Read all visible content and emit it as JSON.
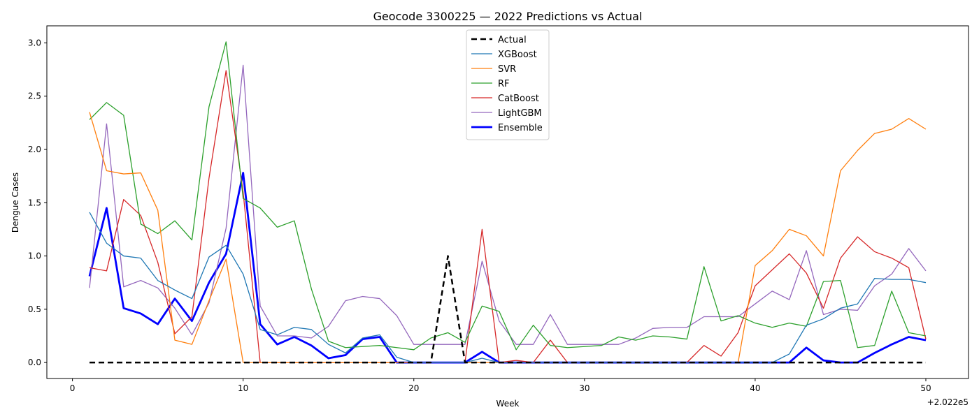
{
  "chart_data": {
    "type": "line",
    "title": "Geocode 3300225 — 2022 Predictions vs Actual",
    "xlabel": "Week",
    "ylabel": "Dengue Cases",
    "x_offset_label": "+2.022e5",
    "xlim": [
      -1.5,
      52.5
    ],
    "ylim": [
      -0.15,
      3.16
    ],
    "x_ticks": [
      0,
      10,
      20,
      30,
      40,
      50
    ],
    "x_tick_labels": [
      "0",
      "10",
      "20",
      "30",
      "40",
      "50"
    ],
    "y_ticks": [
      0,
      0.5,
      1,
      1.5,
      2,
      2.5,
      3
    ],
    "y_tick_labels": [
      "0.0",
      "0.5",
      "1.0",
      "1.5",
      "2.0",
      "2.5",
      "3.0"
    ],
    "grid": false,
    "legend_position": "top-center",
    "x": [
      1,
      2,
      3,
      4,
      5,
      6,
      7,
      8,
      9,
      10,
      11,
      12,
      13,
      14,
      15,
      16,
      17,
      18,
      19,
      20,
      21,
      22,
      23,
      24,
      25,
      26,
      27,
      28,
      29,
      30,
      31,
      32,
      33,
      34,
      35,
      36,
      37,
      38,
      39,
      40,
      41,
      42,
      43,
      44,
      45,
      46,
      47,
      48,
      49,
      50
    ],
    "series": [
      {
        "name": "Actual",
        "color": "#000000",
        "width": 2.5,
        "dash": "8,5",
        "values": [
          0,
          0,
          0,
          0,
          0,
          0,
          0,
          0,
          0,
          0,
          0,
          0,
          0,
          0,
          0,
          0,
          0,
          0,
          0,
          0,
          0,
          1,
          0,
          0,
          0,
          0,
          0,
          0,
          0,
          0,
          0,
          0,
          0,
          0,
          0,
          0,
          0,
          0,
          0,
          0,
          0,
          0,
          0,
          0,
          0,
          0,
          0,
          0,
          0,
          0
        ]
      },
      {
        "name": "XGBoost",
        "color": "#1f77b4",
        "width": 1.3,
        "dash": "",
        "values": [
          1.41,
          1.12,
          1.0,
          0.98,
          0.77,
          0.68,
          0.6,
          0.99,
          1.1,
          0.83,
          0.31,
          0.26,
          0.33,
          0.31,
          0.17,
          0.09,
          0.23,
          0.26,
          0.05,
          0,
          0,
          0,
          0,
          0.04,
          0,
          0,
          0,
          0,
          0,
          0,
          0,
          0,
          0,
          0,
          0,
          0,
          0,
          0,
          0,
          0,
          0,
          0.08,
          0.35,
          0.41,
          0.51,
          0.55,
          0.79,
          0.78,
          0.78,
          0.75
        ]
      },
      {
        "name": "SVR",
        "color": "#ff7f0e",
        "width": 1.3,
        "dash": "",
        "values": [
          2.35,
          1.8,
          1.77,
          1.78,
          1.43,
          0.21,
          0.17,
          0.58,
          0.97,
          0,
          0,
          0,
          0,
          0,
          0,
          0,
          0,
          0,
          0,
          0,
          0,
          0,
          0,
          0,
          0,
          0,
          0,
          0,
          0,
          0,
          0,
          0,
          0,
          0,
          0,
          0,
          0,
          0,
          0,
          0.91,
          1.05,
          1.25,
          1.19,
          1.0,
          1.8,
          1.99,
          2.15,
          2.19,
          2.29,
          2.19
        ]
      },
      {
        "name": "RF",
        "color": "#2ca02c",
        "width": 1.3,
        "dash": "",
        "values": [
          2.28,
          2.44,
          2.32,
          1.3,
          1.21,
          1.33,
          1.15,
          2.4,
          3.01,
          1.54,
          1.45,
          1.27,
          1.33,
          0.69,
          0.2,
          0.14,
          0.15,
          0.16,
          0.14,
          0.12,
          0.23,
          0.28,
          0.19,
          0.53,
          0.48,
          0.12,
          0.35,
          0.16,
          0.14,
          0.15,
          0.16,
          0.24,
          0.21,
          0.25,
          0.24,
          0.22,
          0.9,
          0.39,
          0.44,
          0.37,
          0.33,
          0.37,
          0.34,
          0.76,
          0.77,
          0.14,
          0.16,
          0.67,
          0.28,
          0.25
        ]
      },
      {
        "name": "CatBoost",
        "color": "#d62728",
        "width": 1.3,
        "dash": "",
        "values": [
          0.89,
          0.86,
          1.53,
          1.38,
          0.94,
          0.27,
          0.43,
          1.73,
          2.74,
          1.6,
          0,
          0,
          0,
          0,
          0,
          0,
          0,
          0,
          0,
          0,
          0,
          0,
          0,
          1.25,
          0,
          0.02,
          0,
          0.21,
          0,
          0,
          0,
          0,
          0,
          0,
          0,
          0,
          0.16,
          0.06,
          0.28,
          0.72,
          0.87,
          1.02,
          0.84,
          0.51,
          0.98,
          1.18,
          1.04,
          0.98,
          0.89,
          0.22
        ]
      },
      {
        "name": "LightGBM",
        "color": "#9467bd",
        "width": 1.3,
        "dash": "",
        "values": [
          0.7,
          2.24,
          0.71,
          0.77,
          0.7,
          0.51,
          0.26,
          0.56,
          1.26,
          2.79,
          0.53,
          0.25,
          0.25,
          0.23,
          0.34,
          0.58,
          0.62,
          0.6,
          0.44,
          0.17,
          0.17,
          0.17,
          0.17,
          0.95,
          0.39,
          0.17,
          0.17,
          0.45,
          0.17,
          0.17,
          0.17,
          0.17,
          0.23,
          0.32,
          0.33,
          0.33,
          0.43,
          0.43,
          0.43,
          0.55,
          0.67,
          0.59,
          1.05,
          0.45,
          0.5,
          0.49,
          0.72,
          0.83,
          1.07,
          0.86
        ]
      },
      {
        "name": "Ensemble",
        "color": "#0000ff",
        "width": 2.8,
        "dash": "",
        "values": [
          0.81,
          1.45,
          0.51,
          0.46,
          0.36,
          0.6,
          0.39,
          0.75,
          1.02,
          1.78,
          0.36,
          0.17,
          0.24,
          0.16,
          0.04,
          0.07,
          0.22,
          0.24,
          0,
          0,
          0,
          0,
          0,
          0.1,
          0,
          0,
          0,
          0,
          0,
          0,
          0,
          0,
          0,
          0,
          0,
          0,
          0,
          0,
          0,
          0,
          0,
          0,
          0.14,
          0.02,
          0,
          0,
          0.09,
          0.17,
          0.24,
          0.21
        ]
      }
    ]
  }
}
